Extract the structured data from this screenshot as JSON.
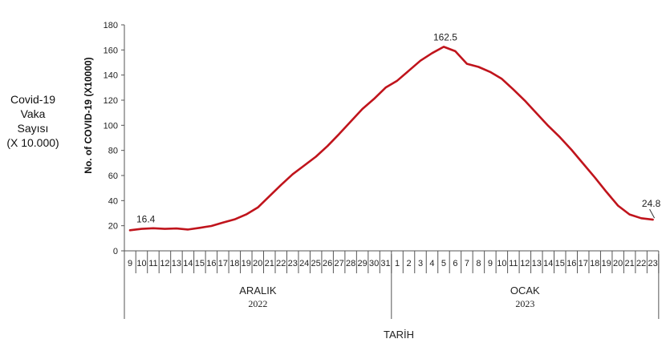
{
  "side_label": {
    "line1": "Covid-19",
    "line2": "Vaka",
    "line3": "Sayısı",
    "line4": "(X 10.000)"
  },
  "chart_data": {
    "type": "line",
    "ylabel": "No. of COVID-19 (X10000)",
    "xlabel": "TARİH",
    "ylim": [
      0,
      180
    ],
    "yticks": [
      0,
      20,
      40,
      60,
      80,
      100,
      120,
      140,
      160,
      180
    ],
    "grid": false,
    "color": "#c0141c",
    "categories": [
      "9",
      "10",
      "11",
      "12",
      "13",
      "14",
      "15",
      "16",
      "17",
      "18",
      "19",
      "20",
      "21",
      "22",
      "23",
      "24",
      "25",
      "26",
      "27",
      "28",
      "29",
      "30",
      "31",
      "1",
      "2",
      "3",
      "4",
      "5",
      "6",
      "7",
      "8",
      "9",
      "10",
      "11",
      "12",
      "13",
      "14",
      "15",
      "16",
      "17",
      "18",
      "19",
      "20",
      "21",
      "22",
      "23"
    ],
    "groups": [
      {
        "label": "ARALIK",
        "year": "2022",
        "start": 0,
        "end": 22
      },
      {
        "label": "OCAK",
        "year": "2023",
        "start": 23,
        "end": 45
      }
    ],
    "series": [
      {
        "values": [
          16.4,
          17.5,
          18.0,
          17.5,
          17.8,
          17.0,
          18.3,
          19.8,
          22.5,
          25.0,
          29.0,
          34.5,
          43.5,
          52.5,
          61.0,
          68.0,
          75.0,
          83.5,
          93.0,
          103.0,
          113.0,
          121.0,
          130.0,
          135.5,
          143.5,
          151.5,
          157.5,
          162.5,
          159.0,
          149.0,
          146.5,
          142.5,
          137.0,
          128.5,
          119.5,
          109.5,
          99.5,
          90.5,
          80.5,
          69.5,
          58.5,
          47.0,
          36.0,
          29.0,
          26.0,
          24.8
        ]
      }
    ],
    "annotations": [
      {
        "index": 0,
        "text": "16.4"
      },
      {
        "index": 27,
        "text": "162.5"
      },
      {
        "index": 45,
        "text": "24.8"
      }
    ]
  }
}
